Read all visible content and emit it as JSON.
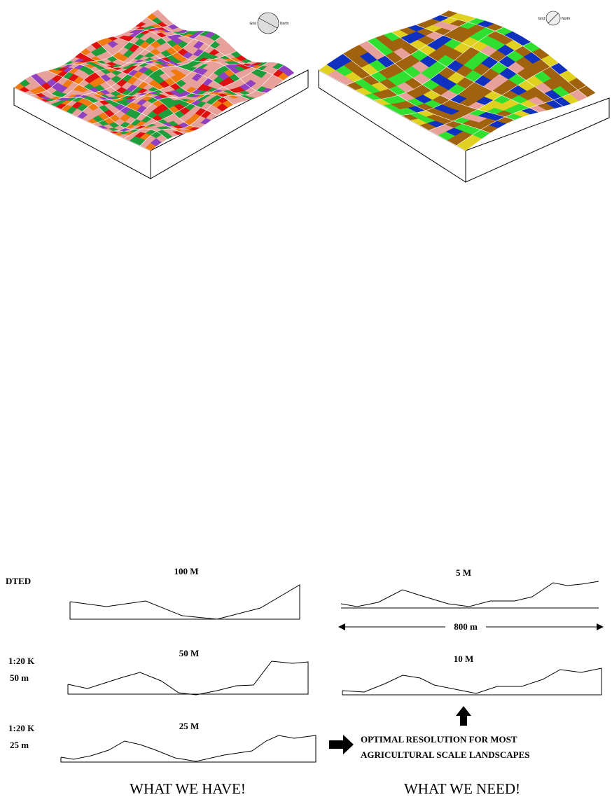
{
  "terrain_maps": [
    {
      "compass": {
        "grid": "Grid",
        "north": "North"
      }
    },
    {
      "compass": {
        "grid": "Grid",
        "north": "North"
      }
    }
  ],
  "profiles": [
    {
      "label": "100 M"
    },
    {
      "label": "50 M"
    },
    {
      "label": "25 M"
    },
    {
      "label": "5 M"
    },
    {
      "label": "10 M"
    }
  ],
  "row_labels": [
    "DTED",
    "1:20 K",
    "50 m",
    "1:20 K",
    "25 m"
  ],
  "distance_label": "800 m",
  "note": [
    "OPTIMAL RESOLUTION FOR MOST",
    "AGRICULTURAL SCALE LANDSCAPES"
  ],
  "captions": [
    "WHAT WE HAVE!",
    "WHAT WE NEED!"
  ]
}
